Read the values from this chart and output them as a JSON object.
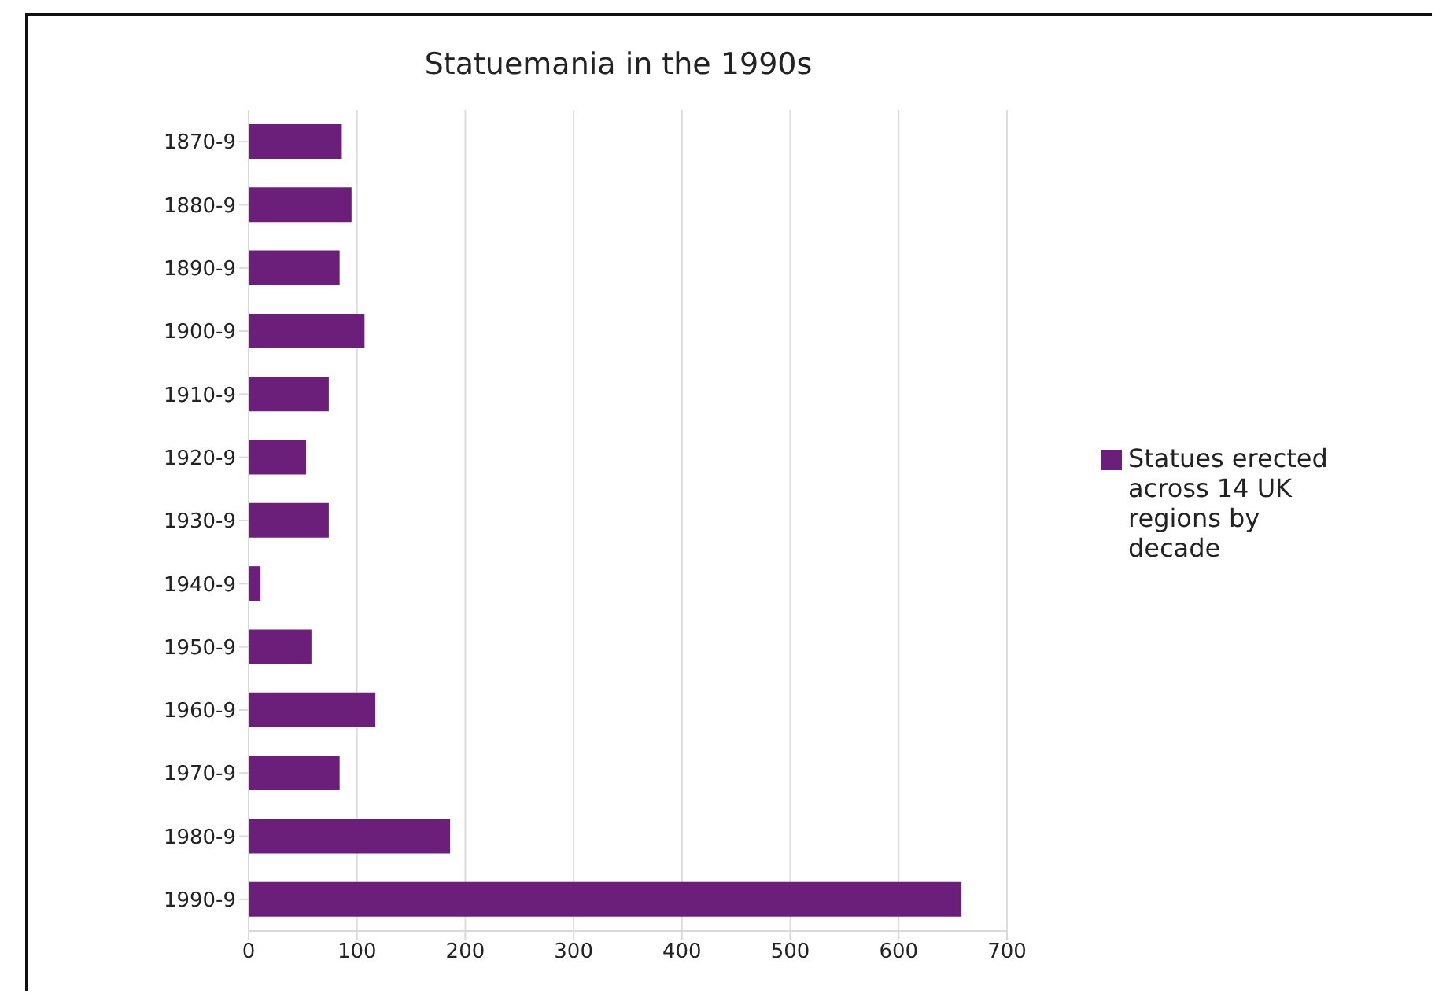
{
  "chart_data": {
    "type": "bar",
    "orientation": "horizontal",
    "title": "Statuemania in the 1990s",
    "categories": [
      "1870-9",
      "1880-9",
      "1890-9",
      "1900-9",
      "1910-9",
      "1920-9",
      "1930-9",
      "1940-9",
      "1950-9",
      "1960-9",
      "1970-9",
      "1980-9",
      "1990-9"
    ],
    "series": [
      {
        "name": "Statues erected across 14 UK regions by decade",
        "color": "#6b1f7b",
        "values": [
          86,
          95,
          84,
          107,
          74,
          53,
          74,
          11,
          58,
          117,
          84,
          186,
          658
        ]
      }
    ],
    "xlim": [
      0,
      700
    ],
    "xticks": [
      0,
      100,
      200,
      300,
      400,
      500,
      600,
      700
    ],
    "grid": "x",
    "legend": "right"
  }
}
